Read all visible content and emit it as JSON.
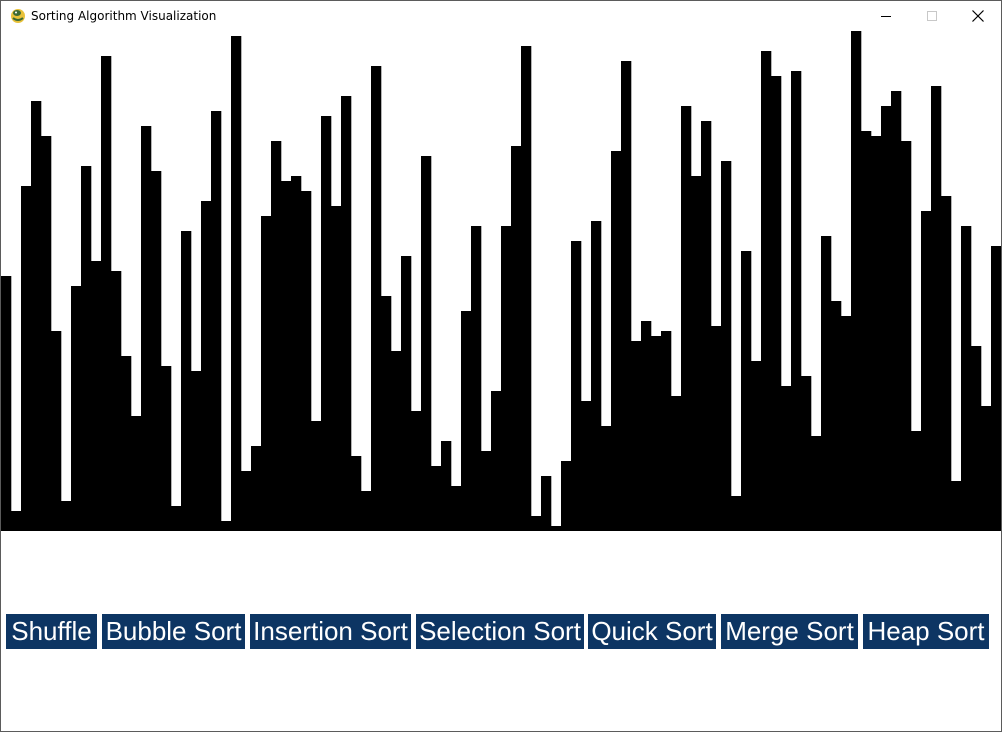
{
  "window": {
    "title": "Sorting Algorithm Visualization",
    "icon": "python-snake-icon"
  },
  "canvas": {
    "bar_color": "#000000",
    "background": "#ffffff",
    "max_value": 500,
    "values": [
      255,
      20,
      345,
      430,
      395,
      200,
      30,
      245,
      365,
      270,
      475,
      260,
      175,
      115,
      405,
      360,
      165,
      25,
      300,
      160,
      330,
      420,
      10,
      495,
      60,
      85,
      315,
      390,
      350,
      355,
      340,
      110,
      415,
      325,
      435,
      75,
      40,
      465,
      235,
      180,
      275,
      120,
      375,
      65,
      90,
      45,
      220,
      305,
      80,
      140,
      305,
      385,
      485,
      15,
      55,
      5,
      70,
      290,
      130,
      310,
      105,
      380,
      470,
      190,
      210,
      195,
      200,
      135,
      425,
      355,
      410,
      205,
      370,
      35,
      280,
      170,
      480,
      455,
      145,
      460,
      155,
      95,
      295,
      230,
      215,
      500,
      400,
      395,
      425,
      440,
      390,
      100,
      320,
      445,
      335,
      50,
      305,
      185,
      125,
      285
    ]
  },
  "buttons": [
    {
      "label": "Shuffle",
      "name": "shuffle-button"
    },
    {
      "label": "Bubble Sort",
      "name": "bubble-sort-button"
    },
    {
      "label": "Insertion Sort",
      "name": "insertion-sort-button"
    },
    {
      "label": "Selection Sort",
      "name": "selection-sort-button"
    },
    {
      "label": "Quick Sort",
      "name": "quick-sort-button"
    },
    {
      "label": "Merge Sort",
      "name": "merge-sort-button"
    },
    {
      "label": "Heap Sort",
      "name": "heap-sort-button"
    }
  ],
  "colors": {
    "button_bg": "#0d3563",
    "button_text": "#ffffff"
  }
}
